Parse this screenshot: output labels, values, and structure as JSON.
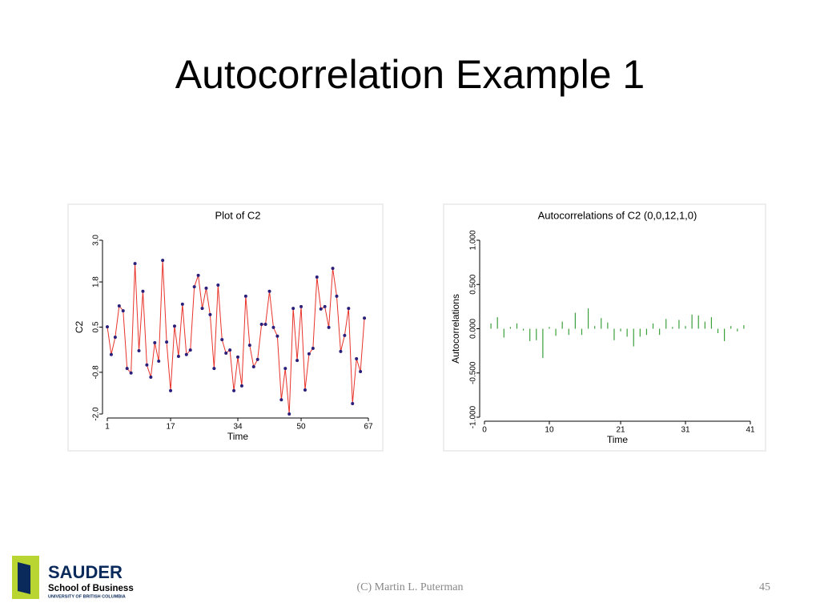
{
  "title": "Autocorrelation Example 1",
  "chart_data": [
    {
      "type": "line",
      "title": "Plot of C2",
      "xlabel": "Time",
      "ylabel": "C2",
      "color": "#e8332a",
      "marker_color": "#2a1f7a",
      "x": [
        1,
        2,
        3,
        4,
        5,
        6,
        7,
        8,
        9,
        10,
        11,
        12,
        13,
        14,
        15,
        16,
        17,
        18,
        19,
        20,
        21,
        22,
        23,
        24,
        25,
        26,
        27,
        28,
        29,
        30,
        31,
        32,
        33,
        34,
        35,
        36,
        37,
        38,
        39,
        40,
        41,
        42,
        43,
        44,
        45,
        46,
        47,
        48,
        49,
        50,
        51,
        52,
        53,
        54,
        55,
        56,
        57,
        58,
        59,
        60,
        61,
        62,
        63,
        64,
        65,
        66
      ],
      "values": [
        0.51,
        -0.29,
        0.21,
        1.11,
        0.97,
        -0.69,
        -0.82,
        2.33,
        -0.18,
        1.53,
        -0.59,
        -0.94,
        0.05,
        -0.48,
        2.42,
        0.07,
        -1.33,
        0.53,
        -0.34,
        1.16,
        -0.29,
        -0.16,
        1.66,
        1.99,
        1.04,
        1.62,
        0.86,
        -0.69,
        1.71,
        0.14,
        -0.25,
        -0.16,
        -1.33,
        -0.36,
        -1.19,
        1.39,
        -0.02,
        -0.64,
        -0.43,
        0.58,
        0.58,
        1.53,
        0.49,
        0.24,
        -1.59,
        -0.69,
        -2.0,
        1.04,
        -0.46,
        1.09,
        -1.31,
        -0.27,
        -0.11,
        1.94,
        1.02,
        1.09,
        0.49,
        2.19,
        1.39,
        -0.2,
        0.26,
        1.04,
        -1.7,
        -0.41,
        -0.78,
        0.76
      ],
      "xlim": [
        1,
        67
      ],
      "xticks": [
        1,
        17,
        34,
        50,
        67
      ],
      "ylim": [
        -2,
        3
      ],
      "yticks": [
        {
          "value": -2,
          "label": "-2.0"
        },
        -0.8,
        0.5,
        1.8,
        {
          "value": 3,
          "label": "3.0"
        }
      ]
    },
    {
      "type": "bar",
      "title": "Autocorrelations of C2 (0,0,12,1,0)",
      "xlabel": "Time",
      "ylabel": "Autocorrelations",
      "color": "#3aa03a",
      "x": [
        1,
        2,
        3,
        4,
        5,
        6,
        7,
        8,
        9,
        10,
        11,
        12,
        13,
        14,
        15,
        16,
        17,
        18,
        19,
        20,
        21,
        22,
        23,
        24,
        25,
        26,
        27,
        28,
        29,
        30,
        31,
        32,
        33,
        34,
        35,
        36,
        37,
        38,
        39,
        40
      ],
      "values": [
        0.06,
        0.13,
        -0.1,
        0.02,
        0.06,
        -0.02,
        -0.14,
        -0.13,
        -0.33,
        0.02,
        -0.08,
        0.08,
        -0.07,
        0.18,
        -0.07,
        0.23,
        0.03,
        0.12,
        0.07,
        -0.13,
        -0.03,
        -0.09,
        -0.2,
        -0.09,
        -0.07,
        0.06,
        -0.07,
        0.11,
        0.02,
        0.1,
        0.03,
        0.16,
        0.15,
        0.08,
        0.13,
        -0.05,
        -0.14,
        0.03,
        -0.03,
        0.04
      ],
      "xlim": [
        0,
        41
      ],
      "xticks": [
        0,
        10,
        21,
        31,
        41
      ],
      "ylim": [
        -1,
        1
      ],
      "yticks": [
        {
          "value": -1,
          "label": "-1.000"
        },
        {
          "value": -0.5,
          "label": "-0.500"
        },
        {
          "value": 0,
          "label": "0.000"
        },
        {
          "value": 0.5,
          "label": "0.500"
        },
        {
          "value": 1,
          "label": "1.000"
        }
      ]
    }
  ],
  "logo": {
    "name": "SAUDER",
    "school": "School of Business",
    "university": "UNIVERSITY OF BRITISH COLUMBIA"
  },
  "footer": {
    "credit": "(C) Martin  L. Puterman",
    "page": 45
  }
}
